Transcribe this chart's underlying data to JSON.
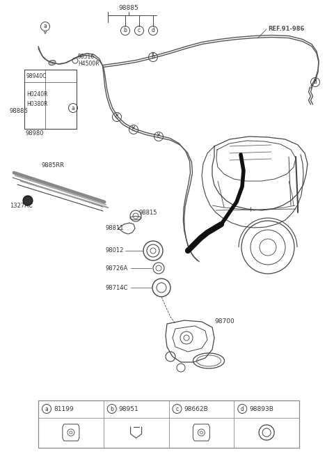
{
  "bg": "#ffffff",
  "lc": "#444444",
  "tc": "#333333",
  "figsize": [
    4.8,
    6.49
  ],
  "dpi": 100,
  "legend_items": [
    {
      "letter": "a",
      "code": "81199"
    },
    {
      "letter": "b",
      "code": "98951"
    },
    {
      "letter": "c",
      "code": "98662B"
    },
    {
      "letter": "d",
      "code": "98893B"
    }
  ]
}
